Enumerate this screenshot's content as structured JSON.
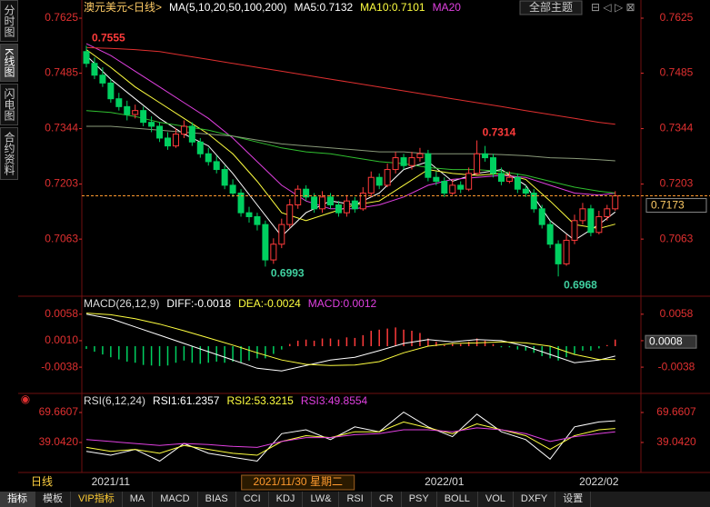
{
  "tabs": [
    "分时图",
    "K线图",
    "闪电图",
    "合约资料"
  ],
  "theme_button": "全部主题",
  "period": "日线",
  "dates": [
    "2021/11",
    "2022/01",
    "2022/02"
  ],
  "date_index": [
    3,
    44,
    63
  ],
  "cursor_date": "2021/11/30 星期二",
  "cursor_index": 26,
  "toolbar": [
    "指标",
    "模板",
    "VIP指标",
    "MA",
    "MACD",
    "BIAS",
    "CCI",
    "KDJ",
    "LW&",
    "RSI",
    "CR",
    "PSY",
    "BOLL",
    "VOL",
    "DXFY",
    "设置"
  ],
  "line_x": [
    0,
    3,
    6,
    9,
    12,
    15,
    18,
    21,
    24,
    27,
    30,
    33,
    36,
    39,
    42,
    45,
    48,
    51,
    54,
    57,
    60,
    63,
    65
  ],
  "chart_data": [
    {
      "type": "candlestick",
      "title": "澳元美元<日线>",
      "indicator": "MA(5,10,20,50,100,200)",
      "legend": [
        "MA5:0.7132",
        "MA10:0.7101",
        "MA20"
      ],
      "ylim": [
        0.692,
        0.7625
      ],
      "yticks": [
        0.7625,
        0.7485,
        0.7344,
        0.7203,
        0.7063
      ],
      "up_color": "#ff3b3b",
      "down_color": "#00d060",
      "last_color": "#ff9a2e",
      "open": [
        0.754,
        0.751,
        0.748,
        0.746,
        0.742,
        0.74,
        0.738,
        0.739,
        0.736,
        0.735,
        0.732,
        0.73,
        0.733,
        0.735,
        0.731,
        0.728,
        0.726,
        0.724,
        0.72,
        0.718,
        0.713,
        0.712,
        0.71,
        0.701,
        0.705,
        0.71,
        0.715,
        0.719,
        0.717,
        0.714,
        0.717,
        0.715,
        0.713,
        0.716,
        0.714,
        0.718,
        0.722,
        0.72,
        0.724,
        0.727,
        0.725,
        0.727,
        0.728,
        0.722,
        0.721,
        0.718,
        0.72,
        0.719,
        0.723,
        0.728,
        0.727,
        0.723,
        0.721,
        0.722,
        0.719,
        0.718,
        0.714,
        0.71,
        0.705,
        0.7,
        0.706,
        0.711,
        0.714,
        0.708,
        0.712,
        0.714
      ],
      "high": [
        0.7555,
        0.7525,
        0.75,
        0.747,
        0.7435,
        0.7415,
        0.7405,
        0.74,
        0.7375,
        0.736,
        0.7335,
        0.7345,
        0.7365,
        0.736,
        0.732,
        0.7295,
        0.7275,
        0.725,
        0.7215,
        0.719,
        0.7145,
        0.713,
        0.711,
        0.7065,
        0.7115,
        0.7165,
        0.72,
        0.72,
        0.718,
        0.7185,
        0.718,
        0.716,
        0.7175,
        0.717,
        0.7195,
        0.7235,
        0.723,
        0.7255,
        0.7285,
        0.728,
        0.7285,
        0.7295,
        0.729,
        0.7235,
        0.722,
        0.7215,
        0.721,
        0.7245,
        0.7314,
        0.73,
        0.728,
        0.7245,
        0.7235,
        0.723,
        0.72,
        0.719,
        0.715,
        0.711,
        0.706,
        0.7075,
        0.7125,
        0.7155,
        0.715,
        0.7135,
        0.715,
        0.7185
      ],
      "low": [
        0.75,
        0.747,
        0.745,
        0.741,
        0.739,
        0.7365,
        0.737,
        0.735,
        0.7335,
        0.731,
        0.729,
        0.7295,
        0.732,
        0.73,
        0.727,
        0.725,
        0.723,
        0.719,
        0.717,
        0.712,
        0.7105,
        0.7085,
        0.6993,
        0.7,
        0.704,
        0.709,
        0.714,
        0.716,
        0.713,
        0.713,
        0.714,
        0.712,
        0.712,
        0.713,
        0.7135,
        0.717,
        0.719,
        0.7195,
        0.723,
        0.724,
        0.724,
        0.726,
        0.721,
        0.72,
        0.717,
        0.7175,
        0.718,
        0.7185,
        0.7225,
        0.726,
        0.722,
        0.72,
        0.7205,
        0.718,
        0.717,
        0.713,
        0.709,
        0.704,
        0.6968,
        0.6995,
        0.705,
        0.71,
        0.707,
        0.7075,
        0.711,
        0.7135
      ],
      "close": [
        0.751,
        0.748,
        0.746,
        0.742,
        0.74,
        0.738,
        0.739,
        0.736,
        0.735,
        0.732,
        0.73,
        0.733,
        0.735,
        0.731,
        0.728,
        0.726,
        0.724,
        0.72,
        0.718,
        0.713,
        0.712,
        0.71,
        0.701,
        0.705,
        0.71,
        0.715,
        0.719,
        0.717,
        0.714,
        0.717,
        0.715,
        0.713,
        0.716,
        0.714,
        0.718,
        0.722,
        0.72,
        0.724,
        0.727,
        0.725,
        0.727,
        0.728,
        0.722,
        0.721,
        0.718,
        0.72,
        0.719,
        0.723,
        0.728,
        0.727,
        0.723,
        0.721,
        0.722,
        0.719,
        0.718,
        0.714,
        0.71,
        0.705,
        0.7,
        0.706,
        0.711,
        0.714,
        0.708,
        0.712,
        0.714,
        0.7173
      ],
      "series": [
        {
          "color": "#ffffff",
          "values": [
            0.753,
            0.747,
            0.742,
            0.737,
            0.733,
            0.73,
            0.723,
            0.715,
            0.707,
            0.713,
            0.716,
            0.715,
            0.718,
            0.724,
            0.726,
            0.721,
            0.723,
            0.724,
            0.72,
            0.711,
            0.706,
            0.71,
            0.7132
          ]
        },
        {
          "color": "#ffff40",
          "values": [
            0.7545,
            0.75,
            0.745,
            0.741,
            0.737,
            0.733,
            0.728,
            0.721,
            0.713,
            0.711,
            0.713,
            0.715,
            0.716,
            0.72,
            0.724,
            0.723,
            0.7225,
            0.723,
            0.7215,
            0.716,
            0.71,
            0.709,
            0.7101
          ]
        },
        {
          "color": "#e040e0",
          "values": [
            0.756,
            0.753,
            0.749,
            0.745,
            0.741,
            0.737,
            0.732,
            0.726,
            0.72,
            0.716,
            0.714,
            0.714,
            0.715,
            0.717,
            0.72,
            0.7215,
            0.722,
            0.7225,
            0.722,
            0.72,
            0.718,
            0.7175,
            0.718
          ]
        },
        {
          "color": "#30c030",
          "values": [
            0.739,
            0.7385,
            0.7375,
            0.736,
            0.735,
            0.734,
            0.7325,
            0.731,
            0.7295,
            0.7285,
            0.728,
            0.727,
            0.726,
            0.7255,
            0.7245,
            0.724,
            0.724,
            0.7235,
            0.7225,
            0.721,
            0.7195,
            0.7185,
            0.718
          ]
        },
        {
          "color": "#8a9a7a",
          "values": [
            0.735,
            0.735,
            0.7345,
            0.734,
            0.7335,
            0.733,
            0.7325,
            0.7315,
            0.7305,
            0.73,
            0.7295,
            0.729,
            0.7285,
            0.7285,
            0.728,
            0.728,
            0.728,
            0.7278,
            0.7275,
            0.727,
            0.7268,
            0.7265,
            0.7262
          ]
        },
        {
          "color": "#e03030",
          "values": [
            0.755,
            0.7548,
            0.7545,
            0.754,
            0.753,
            0.752,
            0.751,
            0.75,
            0.749,
            0.748,
            0.747,
            0.746,
            0.745,
            0.744,
            0.743,
            0.742,
            0.741,
            0.74,
            0.739,
            0.738,
            0.737,
            0.736,
            0.7355
          ]
        }
      ]
    },
    {
      "type": "macd",
      "title": "MACD(26,12,9)",
      "legend": [
        "DIFF:-0.0018",
        "DEA:-0.0024",
        "MACD:0.0012"
      ],
      "ylim": [
        -0.0084,
        0.0089
      ],
      "yticks": [
        0.0058,
        {
          "value": 0.001,
          "label": "0.0010"
        },
        -0.0038
      ],
      "marker": 0.0008,
      "legend_color": "#e040e0",
      "histogram": [
        -0.0005,
        -0.001,
        -0.0015,
        -0.002,
        -0.0024,
        -0.0028,
        -0.003,
        -0.0034,
        -0.0035,
        -0.0036,
        -0.0035,
        -0.003,
        -0.0026,
        -0.003,
        -0.0032,
        -0.003,
        -0.0028,
        -0.003,
        -0.0028,
        -0.003,
        -0.0026,
        -0.0022,
        -0.0022,
        -0.0014,
        -0.0006,
        0.0004,
        0.001,
        0.0012,
        0.001,
        0.0014,
        0.0014,
        0.0012,
        0.0016,
        0.0015,
        0.002,
        0.0028,
        0.003,
        0.0032,
        0.0034,
        0.003,
        0.0028,
        0.0024,
        0.0014,
        0.0008,
        0.0002,
        0.0004,
        0.0004,
        0.0008,
        0.0014,
        0.001,
        0.0004,
        -0.0002,
        -0.0002,
        -0.0006,
        -0.0008,
        -0.0012,
        -0.0018,
        -0.0022,
        -0.0026,
        -0.002,
        -0.0014,
        -0.0008,
        -0.0008,
        -0.0004,
        0.0002,
        0.0012
      ],
      "series": [
        {
          "color": "#ffffff",
          "values": [
            0.0058,
            0.005,
            0.0035,
            0.002,
            0.0005,
            -0.001,
            -0.0025,
            -0.004,
            -0.0045,
            -0.0035,
            -0.0025,
            -0.002,
            -0.0008,
            0.0005,
            0.0012,
            0.0008,
            0.0012,
            0.001,
            0.0,
            -0.0015,
            -0.003,
            -0.0025,
            -0.0018
          ]
        },
        {
          "color": "#ffff40",
          "values": [
            0.006,
            0.0057,
            0.005,
            0.004,
            0.0028,
            0.0015,
            0.0002,
            -0.0012,
            -0.0025,
            -0.0033,
            -0.0035,
            -0.0034,
            -0.0028,
            -0.0012,
            0.0,
            0.0005,
            0.0006,
            0.0008,
            0.0006,
            0.0,
            -0.0015,
            -0.0024,
            -0.0024
          ]
        }
      ]
    },
    {
      "type": "line",
      "title": "RSI(6,12,24)",
      "legend": [
        "RSI1:61.2357",
        "RSI2:53.3215",
        "RSI3:49.8554"
      ],
      "ylim": [
        8.4,
        88.2
      ],
      "yticks": [
        69.6607,
        {
          "value": 39.042,
          "label": "39.0420"
        }
      ],
      "series": [
        {
          "color": "#ffffff",
          "values": [
            30,
            26,
            32,
            20,
            38,
            28,
            24,
            20,
            48,
            52,
            42,
            55,
            50,
            70,
            55,
            45,
            68,
            50,
            42,
            22,
            55,
            60,
            61.2357
          ]
        },
        {
          "color": "#ffff40",
          "values": [
            34,
            30,
            32,
            28,
            36,
            32,
            28,
            26,
            40,
            46,
            44,
            50,
            50,
            60,
            54,
            48,
            58,
            52,
            46,
            32,
            46,
            52,
            53.3215
          ]
        },
        {
          "color": "#e040e0",
          "values": [
            42,
            40,
            38,
            36,
            38,
            37,
            35,
            34,
            40,
            44,
            44,
            47,
            48,
            52,
            52,
            50,
            54,
            52,
            48,
            40,
            45,
            48,
            49.8554
          ]
        }
      ]
    }
  ]
}
